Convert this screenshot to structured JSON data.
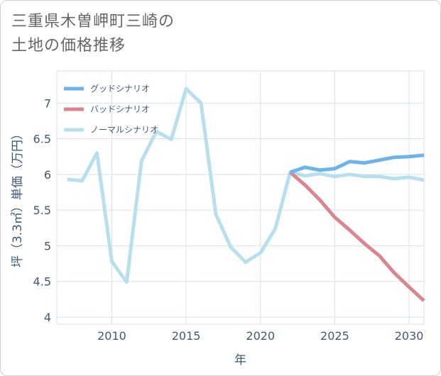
{
  "title_lines": [
    "三重県木曽岬町三崎の",
    "土地の価格推移"
  ],
  "chart_data": {
    "type": "line",
    "xlabel": "年",
    "ylabel": "坪（3.3㎡）単価（万円）",
    "xlim": [
      2006.3,
      2031
    ],
    "ylim": [
      3.9,
      7.45
    ],
    "xticks": [
      2010,
      2015,
      2020,
      2025,
      2030
    ],
    "yticks": [
      4,
      4.5,
      5,
      5.5,
      6,
      6.5,
      7
    ],
    "xtick_labels": [
      "2010",
      "2015",
      "2020",
      "2025",
      "2030"
    ],
    "ytick_labels": [
      "4",
      "4.5",
      "5",
      "5.5",
      "6",
      "6.5",
      "7"
    ],
    "grid": true,
    "legend_position": "top-left",
    "series": [
      {
        "name": "グッドシナリオ",
        "color": "#6cb5ec",
        "x": [
          2022,
          2023,
          2024,
          2025,
          2026,
          2027,
          2028,
          2029,
          2030,
          2031
        ],
        "values": [
          6.03,
          6.1,
          6.06,
          6.08,
          6.18,
          6.16,
          6.2,
          6.24,
          6.25,
          6.27
        ]
      },
      {
        "name": "バッドシナリオ",
        "color": "#d9868e",
        "x": [
          2022,
          2023,
          2024,
          2025,
          2026,
          2027,
          2028,
          2029,
          2030,
          2031
        ],
        "values": [
          6.03,
          5.85,
          5.64,
          5.4,
          5.22,
          5.03,
          4.86,
          4.62,
          4.42,
          4.23
        ]
      },
      {
        "name": "ノーマルシナリオ",
        "color": "#b9dfee",
        "x": [
          2007,
          2008,
          2009,
          2010,
          2011,
          2012,
          2013,
          2014,
          2015,
          2016,
          2017,
          2018,
          2019,
          2020,
          2021,
          2022,
          2023,
          2024,
          2025,
          2026,
          2027,
          2028,
          2029,
          2030,
          2031
        ],
        "values": [
          5.93,
          5.91,
          6.3,
          4.78,
          4.49,
          6.19,
          6.6,
          6.49,
          7.2,
          7.0,
          5.44,
          4.98,
          4.77,
          4.9,
          5.24,
          6.03,
          5.98,
          6.01,
          5.97,
          6.0,
          5.97,
          5.97,
          5.94,
          5.96,
          5.92
        ]
      }
    ]
  }
}
